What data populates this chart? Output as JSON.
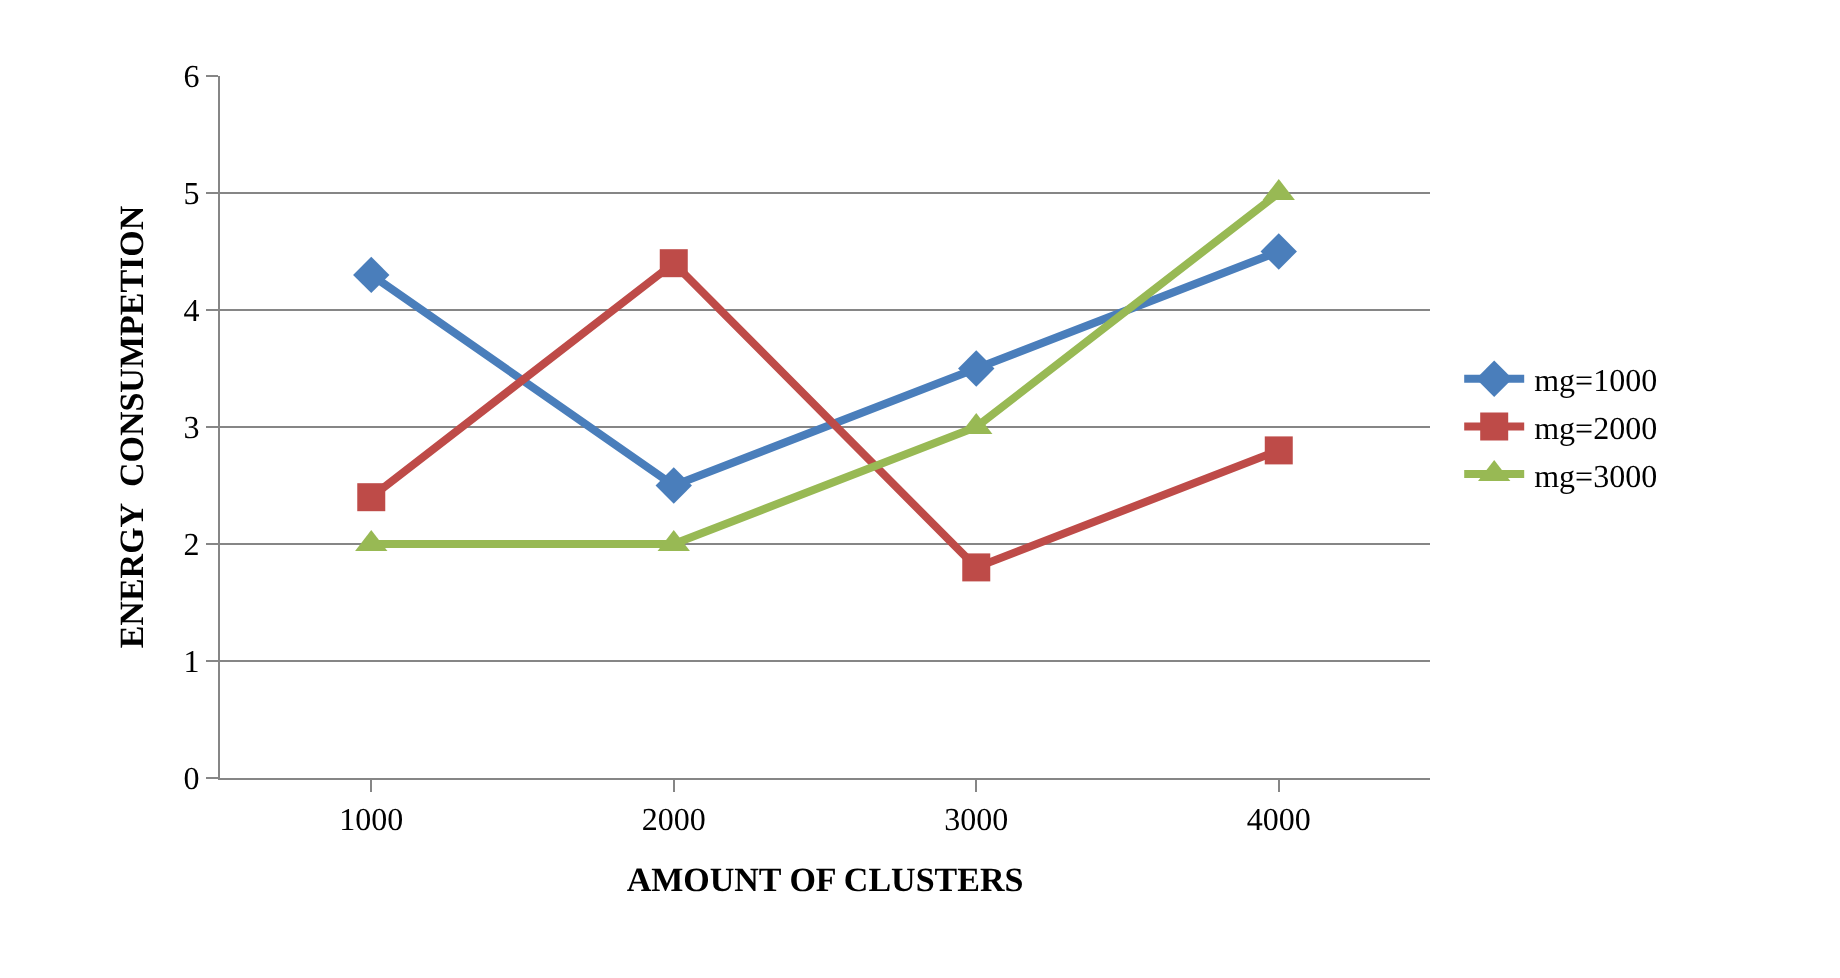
{
  "chart_data": {
    "type": "line",
    "xlabel": "AMOUNT OF CLUSTERS",
    "ylabel": "ENERGY  CONSUMPETION",
    "categories": [
      "1000",
      "2000",
      "3000",
      "4000"
    ],
    "series": [
      {
        "name": "mg=1000",
        "color": "#4a7ebb",
        "marker": "diamond",
        "values": [
          4.3,
          2.5,
          3.5,
          4.5
        ]
      },
      {
        "name": "mg=2000",
        "color": "#be4b48",
        "marker": "square",
        "values": [
          2.4,
          4.4,
          1.8,
          2.8
        ]
      },
      {
        "name": "mg=3000",
        "color": "#98b954",
        "marker": "triangle",
        "values": [
          2,
          2,
          3,
          5
        ]
      }
    ],
    "ylim": [
      0,
      6
    ],
    "yticks": [
      0,
      1,
      2,
      3,
      4,
      5,
      6
    ],
    "grid": "y",
    "legend": "right",
    "line_style": "solid"
  }
}
